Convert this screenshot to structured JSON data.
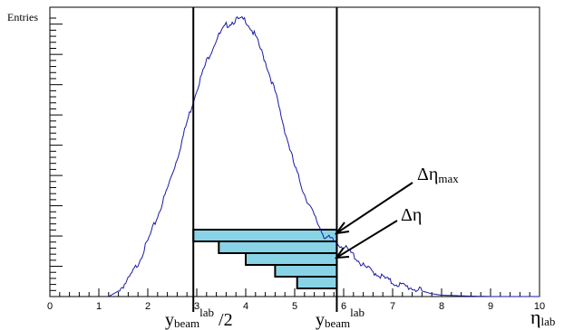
{
  "chart_data": {
    "type": "line",
    "title": "",
    "ylabel": "Entries",
    "xlabel_main": "η",
    "xlabel_sub": "lab",
    "xlim": [
      0,
      10
    ],
    "x_ticks": [
      0,
      1,
      2,
      3,
      4,
      5,
      6,
      7,
      8,
      9,
      10
    ],
    "y_scale_labels": "none",
    "curve_color": "#1a1aa6",
    "bar_fill": "#88d4e6",
    "series": [
      {
        "x": [
          1.2,
          1.4,
          1.6,
          1.8,
          2.0,
          2.2,
          2.4,
          2.6,
          2.8,
          3.0,
          3.2,
          3.4,
          3.6,
          3.8,
          4.0,
          4.2,
          4.4,
          4.6,
          4.8,
          5.0,
          5.2,
          5.4,
          5.6,
          5.8,
          6.0,
          6.2,
          6.4,
          6.6,
          6.8,
          7.0,
          7.2,
          7.4,
          7.6,
          7.8,
          8.0,
          8.5,
          9.0,
          9.5,
          10.0
        ],
        "y": [
          0.0,
          0.02,
          0.06,
          0.12,
          0.2,
          0.29,
          0.39,
          0.5,
          0.63,
          0.75,
          0.85,
          0.93,
          0.98,
          1.0,
          1.0,
          0.94,
          0.85,
          0.74,
          0.6,
          0.47,
          0.37,
          0.29,
          0.22,
          0.2,
          0.18,
          0.15,
          0.11,
          0.09,
          0.07,
          0.05,
          0.04,
          0.03,
          0.02,
          0.01,
          0.005,
          0.002,
          0.0,
          0.0,
          0.0
        ]
      }
    ],
    "vlines": [
      {
        "x": 2.93,
        "label_main": "y",
        "label_sub": "beam",
        "label_sup": "lab",
        "label_suffix": " /2"
      },
      {
        "x": 5.86,
        "label_main": "y",
        "label_sub": "beam",
        "label_sup": "lab",
        "label_suffix": ""
      }
    ],
    "bars": [
      {
        "x0": 2.93,
        "x1": 5.86
      },
      {
        "x0": 3.45,
        "x1": 5.86
      },
      {
        "x0": 4.0,
        "x1": 5.86
      },
      {
        "x0": 4.6,
        "x1": 5.86
      },
      {
        "x0": 5.05,
        "x1": 5.86
      }
    ],
    "annotations": [
      {
        "main": "Δη",
        "sub": "max"
      },
      {
        "main": "Δη",
        "sub": ""
      }
    ]
  }
}
